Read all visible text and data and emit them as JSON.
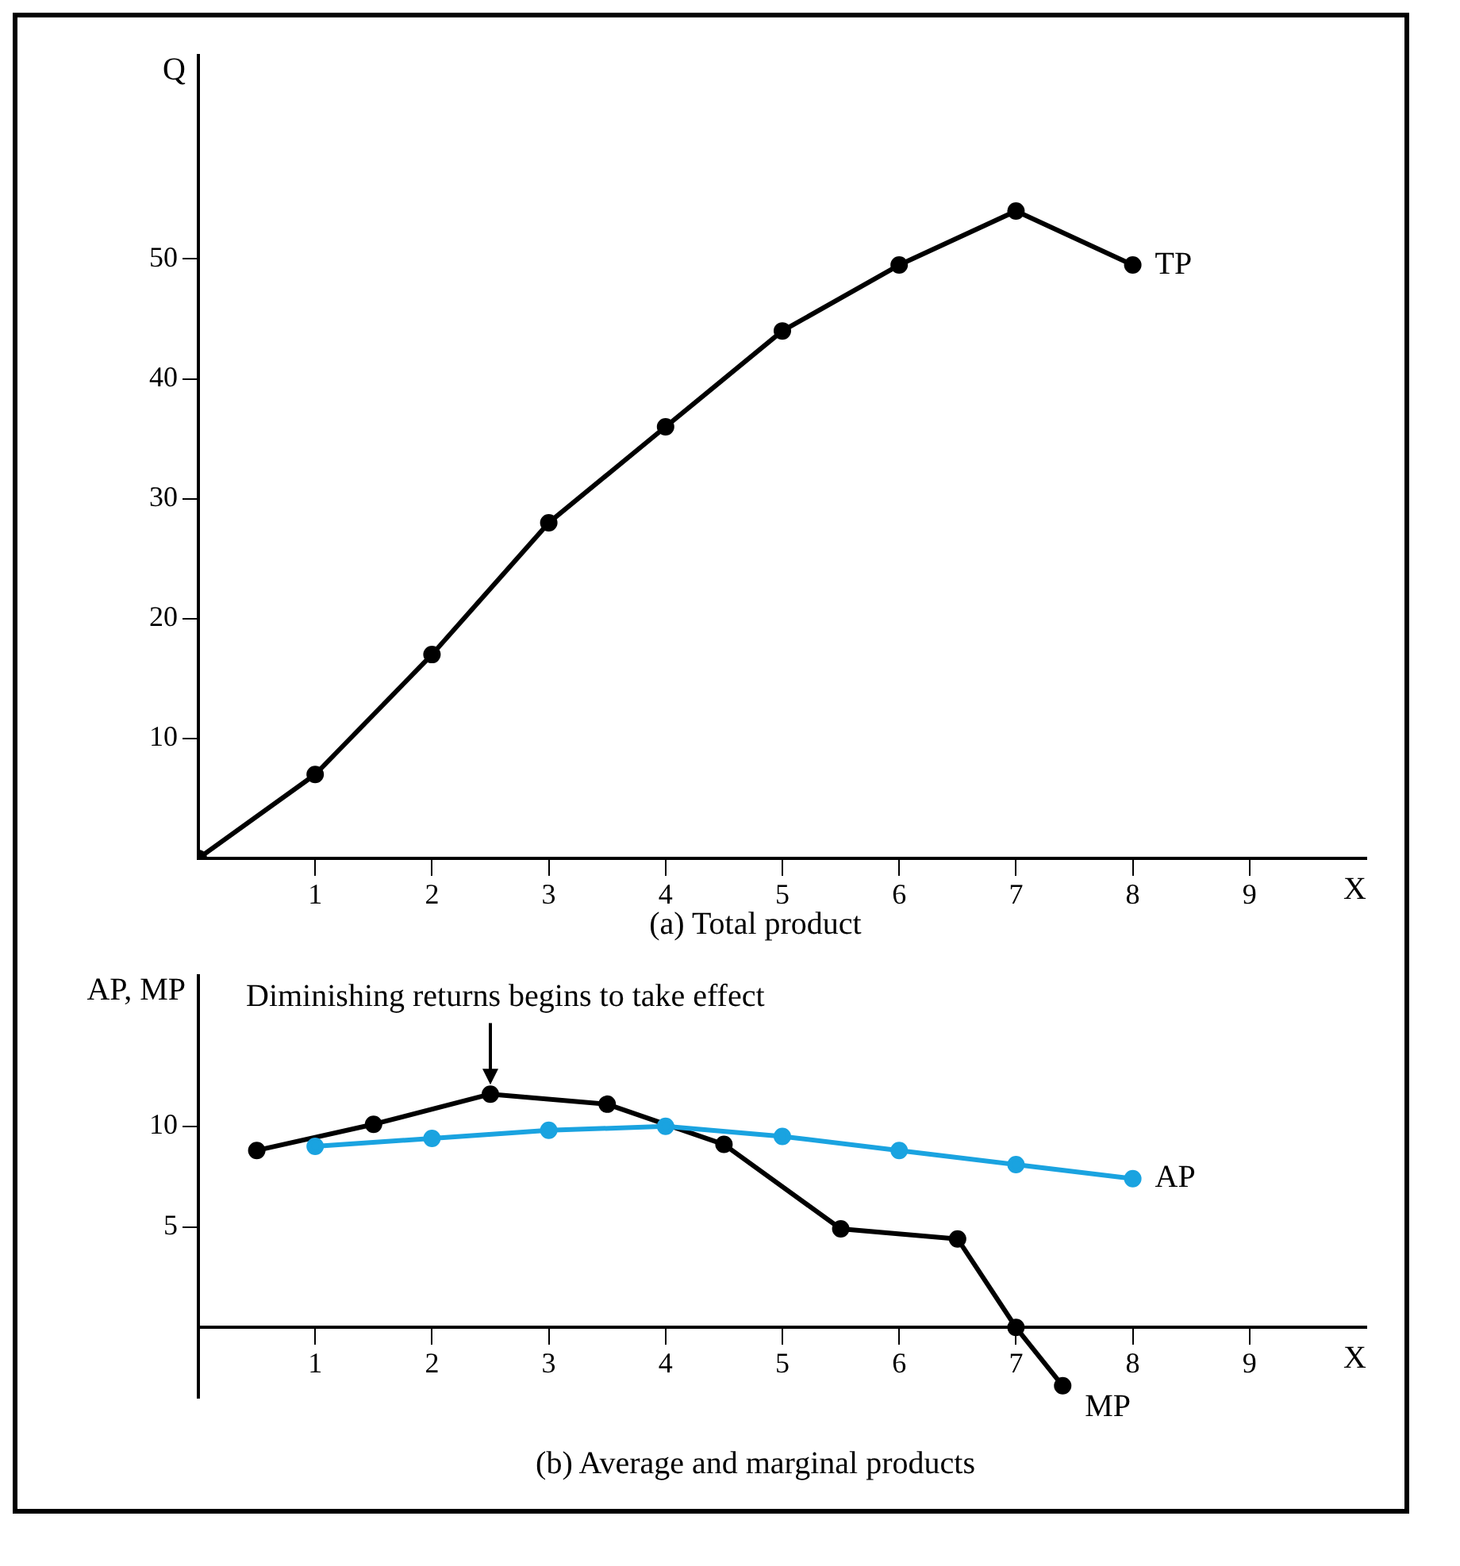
{
  "chart_data": [
    {
      "type": "line",
      "title": "(a) Total product",
      "xlabel": "X",
      "ylabel": "Q",
      "xlim": [
        0,
        10
      ],
      "ylim": [
        0,
        67
      ],
      "xticks": [
        1,
        2,
        3,
        4,
        5,
        6,
        7,
        8,
        9
      ],
      "yticks": [
        10,
        20,
        30,
        40,
        50
      ],
      "grid": false,
      "legend": false,
      "marker": "circle",
      "line_style": "solid",
      "series": [
        {
          "name": "TP",
          "color": "#000000",
          "x": [
            0,
            1,
            2,
            3,
            4,
            5,
            6,
            7,
            8
          ],
          "values": [
            0,
            7,
            17,
            28,
            36,
            44,
            49.5,
            54,
            49.5
          ]
        }
      ]
    },
    {
      "type": "line",
      "title": "(b) Average and marginal products",
      "xlabel": "X",
      "ylabel": "AP, MP",
      "xlim": [
        0,
        10
      ],
      "ylim": [
        -3.5,
        17.5
      ],
      "xticks": [
        1,
        2,
        3,
        4,
        5,
        6,
        7,
        8,
        9
      ],
      "yticks": [
        5,
        10
      ],
      "grid": false,
      "legend": false,
      "marker": "circle",
      "line_style": "solid",
      "annotations": [
        {
          "text": "Diminishing returns begins to take effect",
          "x": 2.5,
          "y": 11.6
        }
      ],
      "series": [
        {
          "name": "AP",
          "color": "#1aa3e0",
          "x": [
            1,
            2,
            3,
            4,
            5,
            6,
            7,
            8
          ],
          "values": [
            9,
            9.4,
            9.8,
            10,
            9.5,
            8.8,
            8.1,
            7.4
          ]
        },
        {
          "name": "MP",
          "color": "#000000",
          "x": [
            0.5,
            1.5,
            2.5,
            3.5,
            4.5,
            5.5,
            6.5,
            7,
            7.4
          ],
          "values": [
            8.8,
            10.1,
            11.6,
            11.1,
            9.1,
            4.9,
            4.4,
            0,
            -2.9
          ]
        }
      ]
    }
  ]
}
